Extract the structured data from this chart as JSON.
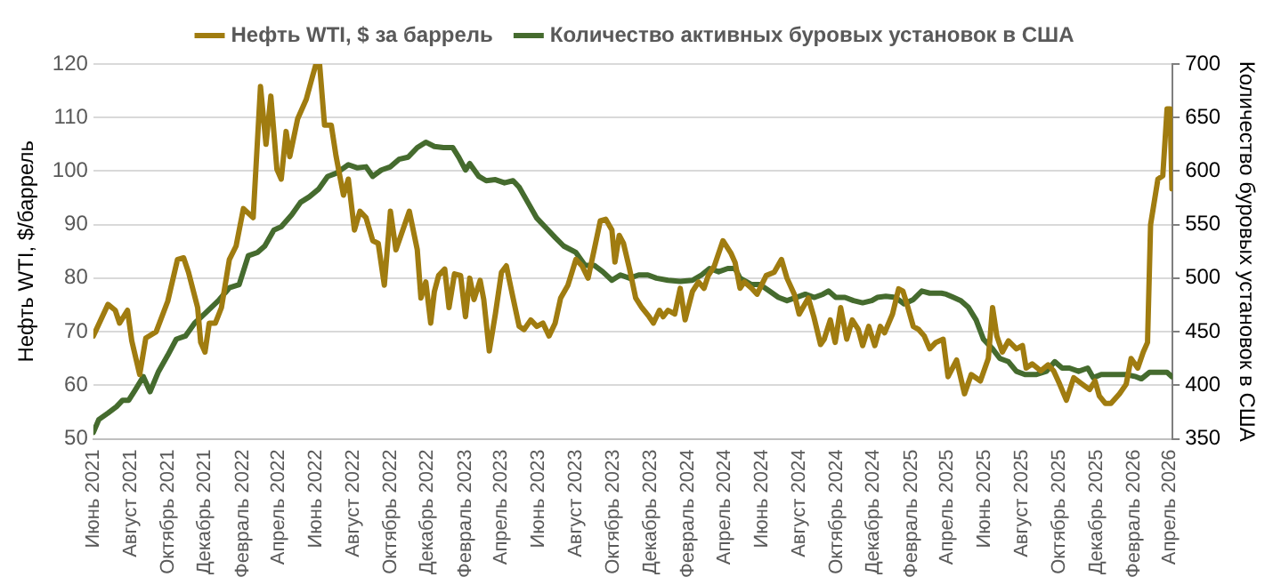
{
  "chart_data": {
    "type": "line",
    "xlim": [
      "2021-06-01",
      "2026-04-05"
    ],
    "xticks": [
      {
        "value": "2021-06-01",
        "label": "Июнь 2021"
      },
      {
        "value": "2021-08-01",
        "label": "Август 2021"
      },
      {
        "value": "2021-10-01",
        "label": "Октябрь 2021"
      },
      {
        "value": "2021-12-01",
        "label": "Декабрь 2021"
      },
      {
        "value": "2022-02-01",
        "label": "Февраль 2022"
      },
      {
        "value": "2022-04-01",
        "label": "Апрель 2022"
      },
      {
        "value": "2022-06-01",
        "label": "Июнь 2022"
      },
      {
        "value": "2022-08-01",
        "label": "Август 2022"
      },
      {
        "value": "2022-10-01",
        "label": "Октябрь 2022"
      },
      {
        "value": "2022-12-01",
        "label": "Декабрь 2022"
      },
      {
        "value": "2023-02-01",
        "label": "Февраль 2023"
      },
      {
        "value": "2023-04-01",
        "label": "Апрель 2023"
      },
      {
        "value": "2023-06-01",
        "label": "Июнь 2023"
      },
      {
        "value": "2023-08-01",
        "label": "Август 2023"
      },
      {
        "value": "2023-10-01",
        "label": "Октябрь 2023"
      },
      {
        "value": "2023-12-01",
        "label": "Декабрь 2023"
      },
      {
        "value": "2024-02-01",
        "label": "Февраль 2024"
      },
      {
        "value": "2024-04-01",
        "label": "Апрель 2024"
      },
      {
        "value": "2024-06-01",
        "label": "Июнь 2024"
      },
      {
        "value": "2024-08-01",
        "label": "Август 2024"
      },
      {
        "value": "2024-10-01",
        "label": "Октябрь 2024"
      },
      {
        "value": "2024-12-01",
        "label": "Декабрь 2024"
      },
      {
        "value": "2025-02-01",
        "label": "Февраль 2025"
      },
      {
        "value": "2025-04-01",
        "label": "Апрель 2025"
      },
      {
        "value": "2025-06-01",
        "label": "Июнь 2025"
      },
      {
        "value": "2025-08-01",
        "label": "Август 2025"
      },
      {
        "value": "2025-10-01",
        "label": "Октябрь 2025"
      },
      {
        "value": "2025-12-01",
        "label": "Декабрь 2025"
      },
      {
        "value": "2026-02-01",
        "label": "Февраль 2026"
      },
      {
        "value": "2026-04-01",
        "label": "Апрель 2026"
      }
    ],
    "ylabel": "Нефть WTI, $/баррель",
    "y2label": "Количество буровых установок в США",
    "ylim": [
      50,
      120
    ],
    "yticks": [
      50,
      60,
      70,
      80,
      90,
      100,
      110,
      120
    ],
    "y2lim": [
      350,
      700
    ],
    "y2ticks": [
      350,
      400,
      450,
      500,
      550,
      600,
      650,
      700
    ],
    "grid": "y",
    "legend": "top",
    "marker": "none",
    "line_style": "solid",
    "series": [
      {
        "name": "Нефть WTI, $ за баррель",
        "color": "#a07c10",
        "x": [
          "2021-06-01",
          "2021-06-25",
          "2021-07-07",
          "2021-07-14",
          "2021-07-27",
          "2021-08-03",
          "2021-08-16",
          "2021-08-26",
          "2021-09-12",
          "2021-10-01",
          "2021-10-17",
          "2021-10-27",
          "2021-11-04",
          "2021-11-19",
          "2021-11-24",
          "2021-12-01",
          "2021-12-08",
          "2021-12-18",
          "2021-12-28",
          "2022-01-10",
          "2022-01-21",
          "2022-02-02",
          "2022-02-18",
          "2022-03-02",
          "2022-03-11",
          "2022-03-19",
          "2022-03-29",
          "2022-04-05",
          "2022-04-13",
          "2022-04-19",
          "2022-05-02",
          "2022-05-16",
          "2022-05-26",
          "2022-06-01",
          "2022-06-07",
          "2022-06-15",
          "2022-06-26",
          "2022-07-04",
          "2022-07-16",
          "2022-07-24",
          "2022-08-03",
          "2022-08-12",
          "2022-08-22",
          "2022-09-02",
          "2022-09-11",
          "2022-09-21",
          "2022-10-01",
          "2022-10-10",
          "2022-11-01",
          "2022-11-14",
          "2022-11-20",
          "2022-11-28",
          "2022-12-06",
          "2022-12-12",
          "2022-12-19",
          "2022-12-29",
          "2023-01-05",
          "2023-01-14",
          "2023-01-24",
          "2023-02-01",
          "2023-02-08",
          "2023-02-15",
          "2023-02-25",
          "2023-03-03",
          "2023-03-12",
          "2023-03-22",
          "2023-04-01",
          "2023-04-09",
          "2023-04-20",
          "2023-04-30",
          "2023-05-08",
          "2023-05-19",
          "2023-05-29",
          "2023-06-08",
          "2023-06-18",
          "2023-06-28",
          "2023-07-07",
          "2023-07-19",
          "2023-08-01",
          "2023-08-11",
          "2023-08-21",
          "2023-08-31",
          "2023-09-10",
          "2023-09-19",
          "2023-09-29",
          "2023-10-04",
          "2023-10-11",
          "2023-10-18",
          "2023-10-28",
          "2023-11-07",
          "2023-11-17",
          "2023-11-29",
          "2023-12-06",
          "2023-12-16",
          "2023-12-22",
          "2023-12-30",
          "2024-01-10",
          "2024-01-19",
          "2024-01-27",
          "2024-02-08",
          "2024-02-18",
          "2024-02-27",
          "2024-03-05",
          "2024-03-15",
          "2024-03-29",
          "2024-04-11",
          "2024-04-18",
          "2024-04-26",
          "2024-05-03",
          "2024-05-15",
          "2024-05-24",
          "2024-06-08",
          "2024-06-21",
          "2024-07-03",
          "2024-07-12",
          "2024-07-24",
          "2024-08-01",
          "2024-08-16",
          "2024-08-25",
          "2024-09-05",
          "2024-09-11",
          "2024-09-21",
          "2024-09-29",
          "2024-10-08",
          "2024-10-18",
          "2024-10-27",
          "2024-11-06",
          "2024-11-13",
          "2024-11-23",
          "2024-12-03",
          "2024-12-12",
          "2024-12-19",
          "2025-01-01",
          "2025-01-11",
          "2025-01-18",
          "2025-01-25",
          "2025-02-04",
          "2025-02-13",
          "2025-02-22",
          "2025-03-03",
          "2025-03-13",
          "2025-03-25",
          "2025-04-02",
          "2025-04-16",
          "2025-04-29",
          "2025-05-10",
          "2025-05-25",
          "2025-06-07",
          "2025-06-14",
          "2025-06-21",
          "2025-06-30",
          "2025-07-10",
          "2025-07-23",
          "2025-08-02",
          "2025-08-08",
          "2025-08-18",
          "2025-09-01",
          "2025-09-13",
          "2025-09-22",
          "2025-10-02",
          "2025-10-13",
          "2025-10-25",
          "2025-11-08",
          "2025-11-20",
          "2025-11-29",
          "2025-12-06",
          "2025-12-16",
          "2025-12-25",
          "2026-01-08",
          "2026-01-19",
          "2026-01-27",
          "2026-02-07",
          "2026-02-16",
          "2026-02-23",
          "2026-02-28",
          "2026-03-12",
          "2026-03-20",
          "2026-03-27",
          "2026-04-01",
          "2026-04-04"
        ],
        "values": [
          69.2,
          75.1,
          74,
          71.6,
          74,
          68.3,
          62,
          68.8,
          70,
          75.7,
          83.5,
          83.8,
          81.1,
          74.5,
          68,
          66.2,
          71.6,
          71.6,
          74.5,
          83.5,
          86,
          93,
          91.3,
          115.8,
          105,
          114,
          100.3,
          98.5,
          107.4,
          102.7,
          109.8,
          113.4,
          117.6,
          120,
          119.8,
          108.6,
          108.6,
          102.7,
          95.5,
          98.5,
          89,
          92.5,
          91.3,
          87,
          86.5,
          78.7,
          92.5,
          85.3,
          92.5,
          85.3,
          76.3,
          79.3,
          71.6,
          77.5,
          80.5,
          81.7,
          74.5,
          80.8,
          80.5,
          72.8,
          80,
          76,
          79.6,
          76,
          66.4,
          73.3,
          81.1,
          82.3,
          76.3,
          71,
          70.4,
          72.2,
          71,
          71.6,
          69.2,
          71.6,
          76.3,
          78.7,
          83.5,
          82.3,
          80,
          85.3,
          90.7,
          91,
          89,
          83,
          88,
          86.5,
          81.7,
          76.3,
          74.5,
          72.8,
          71.6,
          74,
          72.8,
          74,
          73.3,
          78.1,
          72.2,
          77.5,
          79.3,
          78.1,
          80.5,
          82.3,
          87,
          84.7,
          82.9,
          78.1,
          79.3,
          78.1,
          77,
          80.5,
          81.1,
          83.5,
          80,
          77,
          73.3,
          76.3,
          72.8,
          67.6,
          68.6,
          72.2,
          68,
          74.5,
          68.6,
          72.2,
          70.4,
          67.4,
          71,
          67.4,
          71,
          69.8,
          73.3,
          78,
          77.6,
          75,
          71,
          70.4,
          69.2,
          66.8,
          68,
          68.6,
          61.6,
          64.7,
          58.4,
          62,
          60.8,
          65,
          74.5,
          69.2,
          66.2,
          68.3,
          66.8,
          67.4,
          63.2,
          64,
          62.7,
          63.8,
          62.7,
          60.2,
          57.2,
          61.4,
          60.2,
          59.2,
          60.8,
          58,
          56.6,
          56.6,
          58.4,
          60.2,
          65,
          63.2,
          66.2,
          68,
          90,
          98.5,
          99.1,
          111.6,
          111.6,
          96.7
        ]
      },
      {
        "name": "Количество активных буровых установок в США",
        "color": "#456b2e",
        "axis": "y2",
        "x": [
          "2021-06-01",
          "2021-06-10",
          "2021-06-25",
          "2021-07-09",
          "2021-07-19",
          "2021-07-29",
          "2021-08-08",
          "2021-08-22",
          "2021-09-02",
          "2021-09-16",
          "2021-10-01",
          "2021-10-15",
          "2021-10-30",
          "2021-11-14",
          "2021-12-01",
          "2021-12-23",
          "2022-01-10",
          "2022-01-26",
          "2022-02-10",
          "2022-02-25",
          "2022-03-09",
          "2022-03-24",
          "2022-04-05",
          "2022-04-22",
          "2022-05-07",
          "2022-05-21",
          "2022-06-05",
          "2022-06-20",
          "2022-07-04",
          "2022-07-24",
          "2022-08-08",
          "2022-08-22",
          "2022-09-02",
          "2022-09-16",
          "2022-10-01",
          "2022-10-15",
          "2022-10-30",
          "2022-11-14",
          "2022-11-28",
          "2022-12-12",
          "2022-12-27",
          "2023-01-11",
          "2023-01-21",
          "2023-02-01",
          "2023-02-08",
          "2023-02-23",
          "2023-03-07",
          "2023-03-22",
          "2023-04-06",
          "2023-04-20",
          "2023-04-30",
          "2023-05-14",
          "2023-05-29",
          "2023-06-13",
          "2023-06-28",
          "2023-07-12",
          "2023-08-01",
          "2023-08-16",
          "2023-08-31",
          "2023-09-14",
          "2023-09-29",
          "2023-10-13",
          "2023-10-28",
          "2023-11-12",
          "2023-11-27",
          "2023-12-11",
          "2023-12-30",
          "2024-01-19",
          "2024-02-08",
          "2024-02-23",
          "2024-03-07",
          "2024-03-22",
          "2024-04-06",
          "2024-04-18",
          "2024-04-26",
          "2024-05-15",
          "2024-05-29",
          "2024-06-13",
          "2024-06-28",
          "2024-07-12",
          "2024-07-27",
          "2024-08-11",
          "2024-08-26",
          "2024-09-09",
          "2024-09-18",
          "2024-09-30",
          "2024-10-15",
          "2024-10-29",
          "2024-11-13",
          "2024-11-28",
          "2024-12-07",
          "2024-12-21",
          "2025-01-06",
          "2025-01-20",
          "2025-02-04",
          "2025-02-18",
          "2025-03-03",
          "2025-03-22",
          "2025-03-30",
          "2025-04-11",
          "2025-04-23",
          "2025-05-05",
          "2025-05-18",
          "2025-05-30",
          "2025-06-14",
          "2025-06-26",
          "2025-07-10",
          "2025-07-23",
          "2025-08-06",
          "2025-08-25",
          "2025-09-10",
          "2025-09-24",
          "2025-10-06",
          "2025-10-18",
          "2025-11-02",
          "2025-11-17",
          "2025-11-26",
          "2025-12-09",
          "2025-12-20",
          "2026-01-05",
          "2026-01-19",
          "2026-02-04",
          "2026-02-13",
          "2026-02-26",
          "2026-03-12",
          "2026-03-27",
          "2026-04-04"
        ],
        "values": [
          356,
          368,
          374,
          380,
          386,
          386,
          395,
          408,
          394,
          413,
          428,
          443,
          446,
          458,
          467,
          479,
          491,
          494,
          521,
          524,
          530,
          545,
          548,
          559,
          571,
          576,
          583,
          595,
          598,
          606,
          603,
          604,
          595,
          601,
          604,
          611,
          613,
          622,
          627,
          623,
          622,
          622,
          613,
          601,
          607,
          595,
          591,
          592,
          589,
          591,
          585,
          571,
          556,
          547,
          538,
          530,
          524,
          512,
          512,
          506,
          498,
          503,
          500,
          503,
          503,
          500,
          498,
          497,
          498,
          503,
          509,
          506,
          509,
          509,
          500,
          494,
          494,
          488,
          482,
          479,
          482,
          485,
          482,
          485,
          488,
          482,
          482,
          479,
          477,
          479,
          482,
          483,
          482,
          476,
          480,
          488,
          486,
          486,
          485,
          482,
          479,
          473,
          461,
          443,
          434,
          425,
          422,
          413,
          410,
          410,
          413,
          422,
          416,
          416,
          413,
          416,
          407,
          410,
          410,
          410,
          410,
          408,
          406,
          412,
          412,
          412,
          408
        ]
      }
    ]
  }
}
